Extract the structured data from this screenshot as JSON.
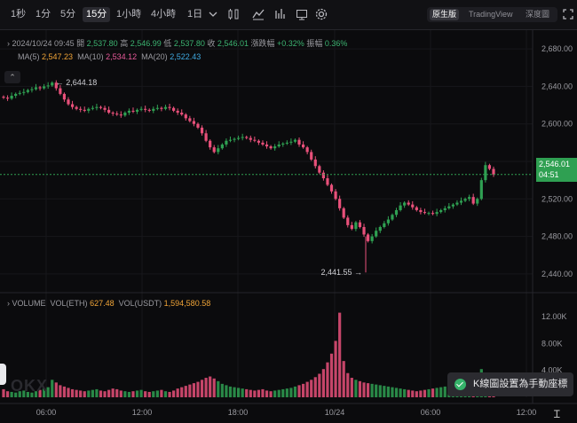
{
  "toolbar": {
    "intervals": [
      "1秒",
      "1分",
      "5分",
      "15分",
      "1小時",
      "4小時",
      "1日"
    ],
    "active_interval": "15分",
    "view_options": [
      "原生版",
      "TradingView",
      "深度圖"
    ],
    "active_view": "原生版"
  },
  "ohlc": {
    "datetime": "2024/10/24 09:45",
    "open_label": "開",
    "open": "2,537.80",
    "high_label": "高",
    "high": "2,546.99",
    "low_label": "低",
    "low": "2,537.80",
    "close_label": "收",
    "close": "2,546.01",
    "change_label": "漲跌幅",
    "change": "+0.32%",
    "amplitude_label": "振幅",
    "amplitude": "0.36%"
  },
  "ma": {
    "ma5_label": "MA(5)",
    "ma5": "2,547.23",
    "ma10_label": "MA(10)",
    "ma10": "2,534.12",
    "ma20_label": "MA(20)",
    "ma20": "2,522.43"
  },
  "volume_legend": {
    "title": "VOLUME",
    "eth_label": "VOL(ETH)",
    "eth": "627.48",
    "usdt_label": "VOL(USDT)",
    "usdt": "1,594,580.58"
  },
  "price_axis": [
    "2,680.00",
    "2,640.00",
    "2,600.00",
    "2,560.00",
    "2,520.00",
    "2,480.00",
    "2,440.00"
  ],
  "volume_axis": [
    "12.00K",
    "8.00K",
    "4.00K"
  ],
  "time_axis": [
    "06:00",
    "12:00",
    "18:00",
    "10/24",
    "06:00",
    "12:00"
  ],
  "current_price": {
    "price": "2,546.01",
    "countdown": "04:51"
  },
  "high_marker": "2,644.18",
  "low_marker": "2,441.55",
  "toast": "K線圖設置為手動座標",
  "watermark": "OKX",
  "colors": {
    "up": "#2fa052",
    "down": "#e8507a",
    "background": "#0b0b0d"
  },
  "chart_data": {
    "type": "candlestick",
    "y_range": [
      2420,
      2700
    ],
    "volume_range": [
      0,
      14000
    ],
    "closes": [
      2628,
      2627,
      2630,
      2632,
      2633,
      2634,
      2636,
      2637,
      2639,
      2638,
      2640,
      2641,
      2644,
      2638,
      2632,
      2626,
      2621,
      2618,
      2616,
      2615,
      2614,
      2616,
      2617,
      2618,
      2617,
      2615,
      2612,
      2611,
      2610,
      2609,
      2612,
      2614,
      2613,
      2615,
      2616,
      2615,
      2614,
      2616,
      2617,
      2616,
      2618,
      2617,
      2614,
      2612,
      2610,
      2606,
      2603,
      2600,
      2596,
      2590,
      2582,
      2575,
      2570,
      2574,
      2578,
      2582,
      2583,
      2584,
      2585,
      2586,
      2585,
      2583,
      2582,
      2580,
      2578,
      2576,
      2574,
      2576,
      2578,
      2579,
      2580,
      2581,
      2583,
      2578,
      2575,
      2570,
      2562,
      2555,
      2548,
      2542,
      2535,
      2528,
      2520,
      2510,
      2500,
      2492,
      2488,
      2495,
      2490,
      2482,
      2475,
      2480,
      2486,
      2490,
      2494,
      2498,
      2503,
      2508,
      2513,
      2516,
      2514,
      2511,
      2508,
      2506,
      2505,
      2505,
      2504,
      2506,
      2508,
      2510,
      2512,
      2514,
      2516,
      2518,
      2520,
      2522,
      2515,
      2520,
      2540,
      2556,
      2552,
      2546
    ],
    "volumes": [
      1200,
      900,
      800,
      700,
      900,
      1000,
      800,
      700,
      900,
      1100,
      1300,
      1500,
      2600,
      2200,
      1800,
      1600,
      1400,
      1200,
      1100,
      1000,
      900,
      1000,
      1100,
      1200,
      1000,
      900,
      1100,
      1300,
      1200,
      1000,
      900,
      800,
      900,
      1000,
      1100,
      900,
      800,
      900,
      1000,
      1100,
      900,
      800,
      1000,
      1300,
      1500,
      1700,
      1900,
      2100,
      2300,
      2600,
      2900,
      3100,
      2800,
      2400,
      2000,
      1800,
      1600,
      1500,
      1400,
      1300,
      1200,
      1100,
      1000,
      1100,
      1200,
      1000,
      900,
      1000,
      1100,
      1200,
      1300,
      1400,
      1600,
      1800,
      2000,
      2300,
      2600,
      3000,
      3500,
      4200,
      5200,
      6500,
      8400,
      12600,
      5400,
      3600,
      2900,
      2600,
      2400,
      2200,
      2100,
      2000,
      1900,
      1800,
      1700,
      1600,
      1500,
      1400,
      1300,
      1200,
      1100,
      1000,
      900,
      1000,
      1100,
      1200,
      1300,
      1400,
      1500,
      1600,
      1700,
      1800,
      1900,
      2000,
      2200,
      2400,
      2600,
      2800,
      4200,
      3600,
      2800,
      2400
    ]
  }
}
